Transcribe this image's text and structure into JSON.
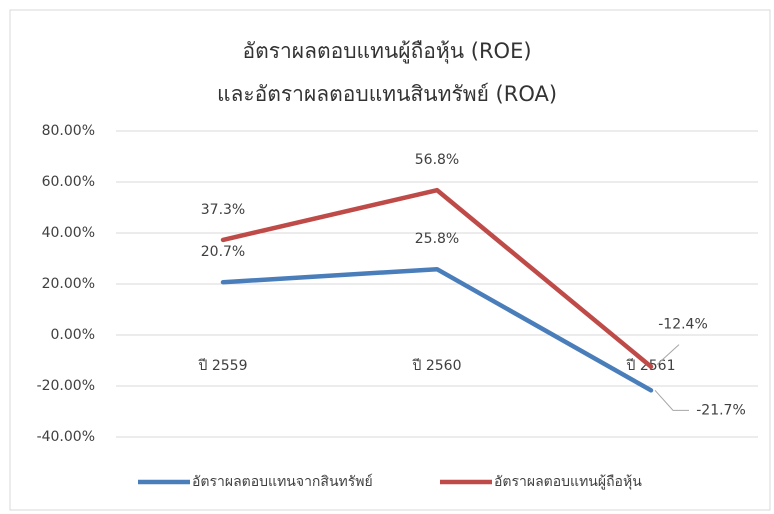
{
  "chart_data": {
    "type": "line",
    "title": [
      "อัตราผลตอบแทนผู้ถือหุ้น (ROE)",
      "และอัตราผลตอบแทนสินทรัพย์ (ROA)"
    ],
    "categories": [
      "ปี 2559",
      "ปี 2560",
      "ปี 2561"
    ],
    "series": [
      {
        "name": "อัตราผลตอบแทนจากสินทรัพย์",
        "color": "#4a7ebb",
        "values": [
          20.7,
          25.8,
          -21.7
        ],
        "value_labels": [
          "20.7%",
          "25.8%",
          "-21.7%"
        ]
      },
      {
        "name": "อัตราผลตอบแทนผู้ถือหุ้น",
        "color": "#be4b48",
        "values": [
          37.3,
          56.8,
          -12.4
        ],
        "value_labels": [
          "37.3%",
          "56.8%",
          "-12.4%"
        ]
      }
    ],
    "ylim": [
      -40,
      80
    ],
    "yticks": [
      {
        "value": -40,
        "label": "-40.00%"
      },
      {
        "value": -20,
        "label": "-20.00%"
      },
      {
        "value": 0,
        "label": "0.00%"
      },
      {
        "value": 20,
        "label": "20.00%"
      },
      {
        "value": 40,
        "label": "40.00%"
      },
      {
        "value": 60,
        "label": "60.00%"
      },
      {
        "value": 80,
        "label": "80.00%"
      }
    ],
    "grid": true,
    "legend": "bottom"
  }
}
